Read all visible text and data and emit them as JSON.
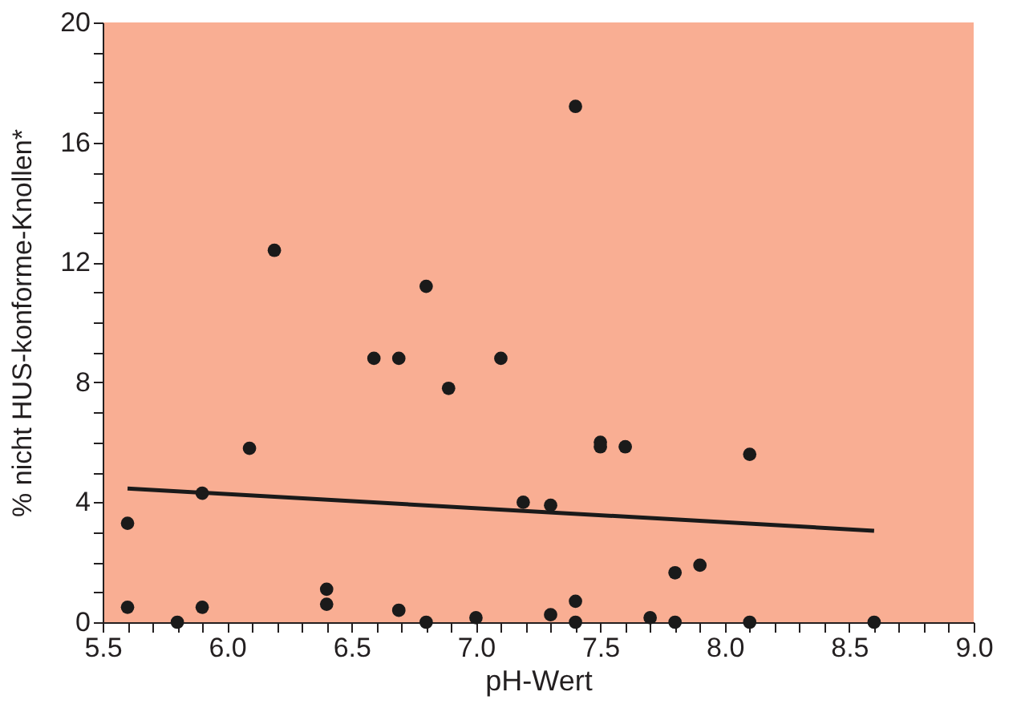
{
  "chart_data": {
    "type": "scatter",
    "xlabel": "pH-Wert",
    "ylabel": "% nicht HUS-konforme-Knollen*",
    "xlim": [
      5.5,
      9.0
    ],
    "ylim": [
      0,
      20
    ],
    "xticks": [
      5.5,
      {
        "value": 5.6,
        "label": null
      },
      {
        "value": 5.7,
        "label": null
      },
      {
        "value": 5.8,
        "label": null
      },
      {
        "value": 5.9,
        "label": null
      },
      {
        "value": 6.0,
        "label": "6.0"
      },
      {
        "value": 6.1,
        "label": null
      },
      {
        "value": 6.2,
        "label": null
      },
      {
        "value": 6.3,
        "label": null
      },
      {
        "value": 6.4,
        "label": null
      },
      6.5,
      {
        "value": 6.6,
        "label": null
      },
      {
        "value": 6.7,
        "label": null
      },
      {
        "value": 6.8,
        "label": null
      },
      {
        "value": 6.9,
        "label": null
      },
      {
        "value": 7.0,
        "label": "7.0"
      },
      {
        "value": 7.1,
        "label": null
      },
      {
        "value": 7.2,
        "label": null
      },
      {
        "value": 7.3,
        "label": null
      },
      {
        "value": 7.4,
        "label": null
      },
      7.5,
      {
        "value": 7.6,
        "label": null
      },
      {
        "value": 7.7,
        "label": null
      },
      {
        "value": 7.8,
        "label": null
      },
      {
        "value": 7.9,
        "label": null
      },
      {
        "value": 8.0,
        "label": "8.0"
      },
      {
        "value": 8.1,
        "label": null
      },
      {
        "value": 8.2,
        "label": null
      },
      {
        "value": 8.3,
        "label": null
      },
      {
        "value": 8.4,
        "label": null
      },
      8.5,
      {
        "value": 8.6,
        "label": null
      },
      {
        "value": 8.7,
        "label": null
      },
      {
        "value": 8.8,
        "label": null
      },
      {
        "value": 8.9,
        "label": null
      },
      {
        "value": 9.0,
        "label": "9.0"
      }
    ],
    "yticks": [
      0,
      {
        "value": 1,
        "label": null
      },
      {
        "value": 2,
        "label": null
      },
      {
        "value": 3,
        "label": null
      },
      4,
      {
        "value": 5,
        "label": null
      },
      {
        "value": 6,
        "label": null
      },
      {
        "value": 7,
        "label": null
      },
      8,
      {
        "value": 9,
        "label": null
      },
      {
        "value": 10,
        "label": null
      },
      {
        "value": 11,
        "label": null
      },
      12,
      {
        "value": 13,
        "label": null
      },
      {
        "value": 14,
        "label": null
      },
      {
        "value": 15,
        "label": null
      },
      16,
      {
        "value": 17,
        "label": null
      },
      {
        "value": 18,
        "label": null
      },
      {
        "value": 19,
        "label": null
      },
      20
    ],
    "grid": false,
    "marker": "circle",
    "series": [
      {
        "color": "#1a1a1a",
        "x": [
          5.6,
          5.6,
          5.8,
          5.9,
          5.9,
          6.09,
          6.19,
          6.4,
          6.4,
          6.59,
          6.69,
          6.69,
          6.8,
          6.8,
          6.89,
          7.0,
          7.1,
          7.19,
          7.3,
          7.3,
          7.4,
          7.4,
          7.4,
          7.5,
          7.5,
          7.6,
          7.7,
          7.8,
          7.8,
          7.9,
          8.1,
          8.1,
          8.6
        ],
        "values": [
          3.3,
          0.5,
          0,
          4.3,
          0.5,
          5.8,
          12.4,
          1.1,
          0.6,
          8.8,
          8.8,
          0.4,
          11.2,
          0,
          7.8,
          0.15,
          8.8,
          4.0,
          3.9,
          0.25,
          17.2,
          0.7,
          0,
          6.0,
          5.85,
          5.85,
          0.15,
          1.65,
          0,
          1.9,
          5.6,
          0,
          0
        ]
      },
      {
        "type": "line",
        "color": "#1a1a1a",
        "line_style": "solid",
        "marker": "none",
        "x": [
          5.6,
          8.6
        ],
        "values": [
          4.46,
          3.05
        ]
      }
    ]
  }
}
